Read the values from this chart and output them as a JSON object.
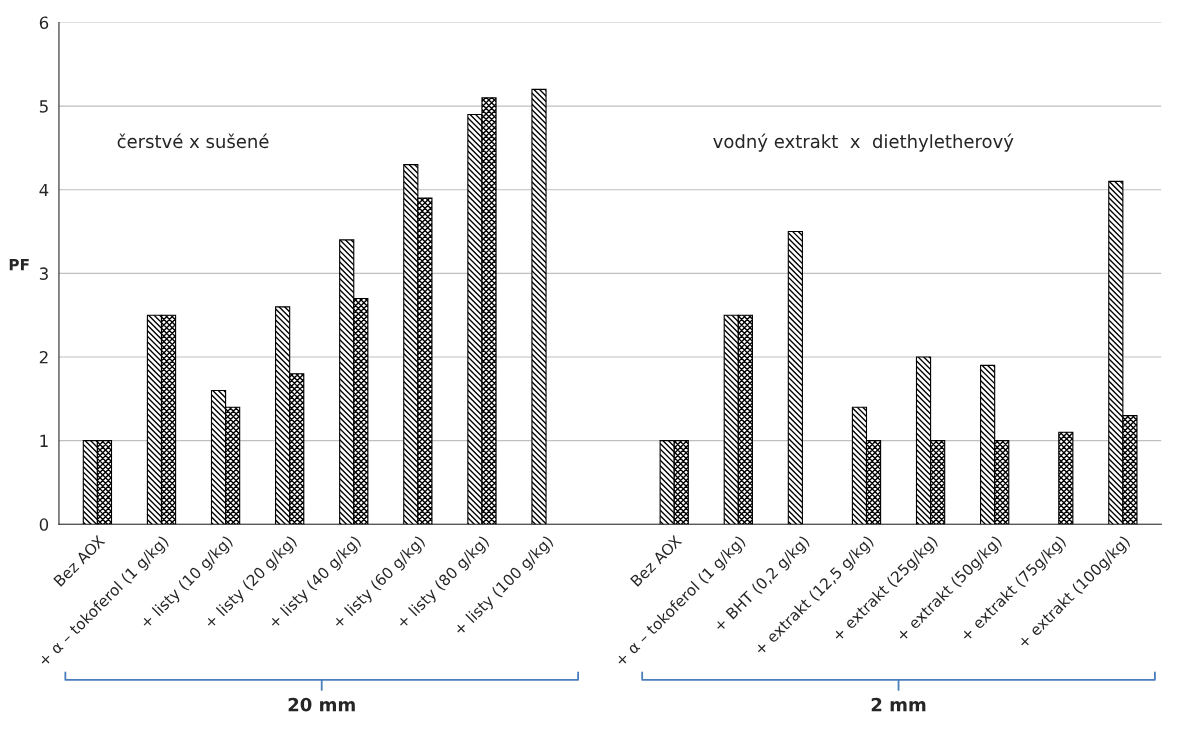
{
  "chart_data": {
    "type": "bar",
    "ylabel": "PF",
    "categories": [
      "Bez AOX",
      "+ α – tokoferol (1 g/kg)",
      "+ listy (10 g/kg)",
      "+ listy (20 g/kg)",
      "+ listy (40 g/kg)",
      "+ listy (60 g/kg)",
      "+ listy (80 g/kg)",
      "+ listy (100 g/kg)",
      null,
      "Bez AOX",
      "+ α – tokoferol (1 g/kg)",
      "+ BHT (0,2 g/kg)",
      "+ extrakt (12,5 g/kg)",
      "+ extrakt (25g/kg)",
      "+ extrakt (50g/kg)",
      "+ extrakt (75g/kg)",
      "+ extrakt (100g/kg)"
    ],
    "series": [
      {
        "color": "#000000",
        "values": [
          1,
          2.5,
          1.6,
          2.6,
          3.4,
          4.3,
          4.9,
          5.2,
          null,
          1,
          2.5,
          3.5,
          1.4,
          2.0,
          1.9,
          null,
          4.1
        ]
      },
      {
        "color": "#000000",
        "values": [
          1,
          2.5,
          1.4,
          1.8,
          2.7,
          3.9,
          5.1,
          null,
          null,
          1,
          2.5,
          null,
          1.0,
          1.0,
          1.0,
          1.1,
          1.3
        ]
      }
    ],
    "ylim": [
      0,
      6
    ],
    "yticks": [
      0,
      1,
      2,
      3,
      4,
      5,
      6
    ],
    "grid": "y",
    "annotations": [
      "čerstvé x sušené",
      "vodný extrakt  x  diethyletherový",
      "20 mm",
      "2 mm"
    ]
  }
}
